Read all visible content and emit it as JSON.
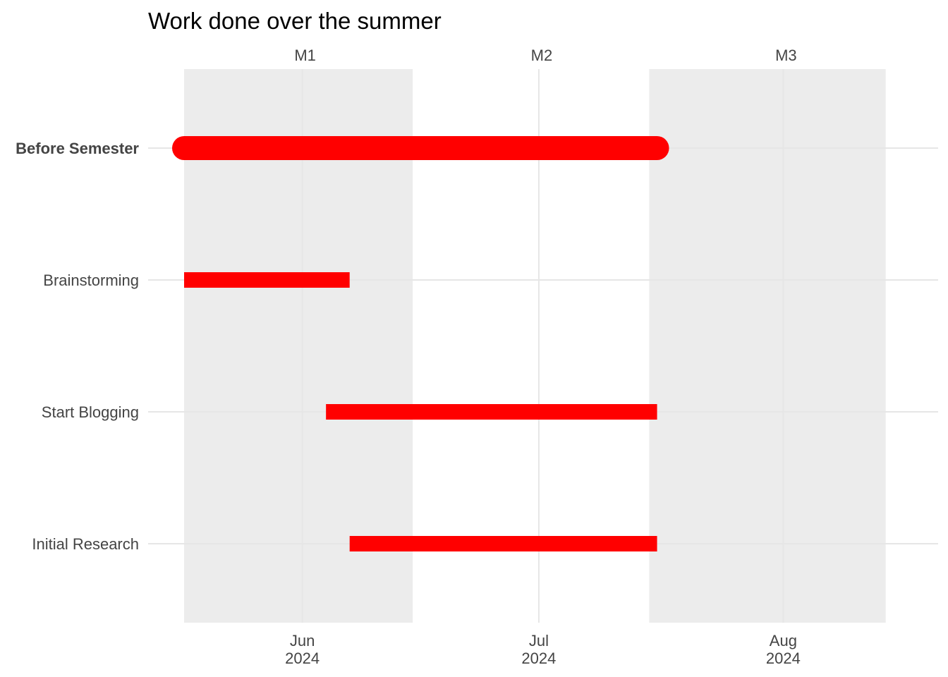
{
  "chart_data": {
    "type": "gantt",
    "title": "Work done over the summer",
    "xlabel": "",
    "ylabel": "",
    "xlim": [
      "2024-05-17",
      "2024-08-16"
    ],
    "x_ticks": [
      {
        "date": "2024-06-01",
        "line1": "Jun",
        "line2": "2024"
      },
      {
        "date": "2024-07-01",
        "line1": "Jul",
        "line2": "2024"
      },
      {
        "date": "2024-08-01",
        "line1": "Aug",
        "line2": "2024"
      }
    ],
    "bands": [
      {
        "label": "M1",
        "start": "2024-05-17",
        "end": "2024-06-15",
        "shaded": true
      },
      {
        "label": "M2",
        "start": "2024-06-15",
        "end": "2024-07-15",
        "shaded": false
      },
      {
        "label": "M3",
        "start": "2024-07-15",
        "end": "2024-08-14",
        "shaded": true
      }
    ],
    "tasks": [
      {
        "name": "Before Semester",
        "start": "2024-05-17",
        "end": "2024-07-16",
        "bold": true,
        "rounded": true
      },
      {
        "name": "Brainstorming",
        "start": "2024-05-17",
        "end": "2024-06-07",
        "bold": false,
        "rounded": false
      },
      {
        "name": "Start Blogging",
        "start": "2024-06-04",
        "end": "2024-07-16",
        "bold": false,
        "rounded": false
      },
      {
        "name": "Initial Research",
        "start": "2024-06-07",
        "end": "2024-07-16",
        "bold": false,
        "rounded": false
      }
    ],
    "colors": {
      "bar": "#ff0000",
      "band": "#ececec",
      "grid": "#e6e6e6",
      "text": "#444444"
    },
    "grid": true,
    "legend": "none"
  }
}
